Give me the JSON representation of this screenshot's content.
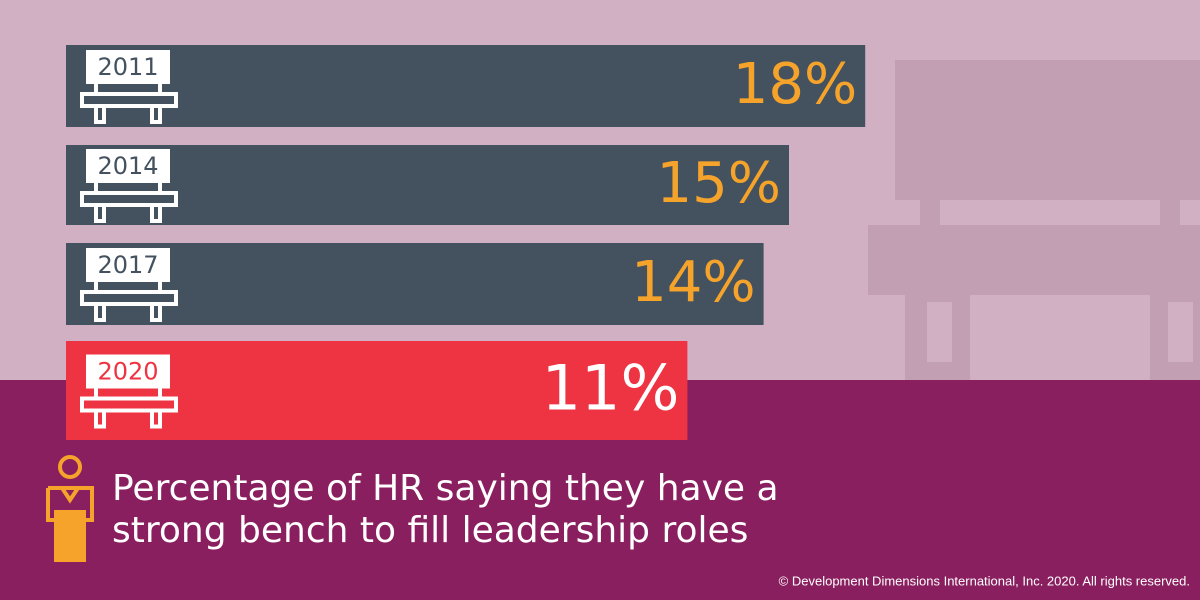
{
  "chart_data": {
    "type": "bar",
    "categories": [
      "2011",
      "2014",
      "2017",
      "2020"
    ],
    "values": [
      18,
      15,
      14,
      11
    ],
    "value_labels": [
      "18%",
      "15%",
      "14%",
      "11%"
    ],
    "colors": [
      "#44525f",
      "#44525f",
      "#44525f",
      "#ee3342"
    ],
    "value_label_colors": [
      "#f5a32a",
      "#f5a32a",
      "#f5a32a",
      "#ffffff"
    ],
    "caption": [
      "Percentage of HR saying they have a",
      "strong bench to fill leadership roles"
    ],
    "copyright": "© Development Dimensions International, Inc. 2020. All rights reserved."
  }
}
